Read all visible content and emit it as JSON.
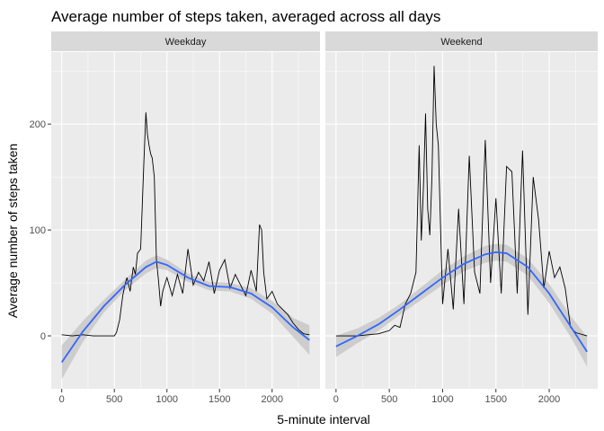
{
  "chart_data": {
    "type": "line",
    "title": "Average number of steps taken, averaged across all days",
    "xlabel": "5-minute interval",
    "ylabel": "Average number of steps taken",
    "xlim": [
      -100,
      2455
    ],
    "ylim": [
      -50,
      268
    ],
    "x_ticks": [
      0,
      500,
      1000,
      1500,
      2000
    ],
    "y_ticks": [
      0,
      100,
      200
    ],
    "grid": true,
    "colors": {
      "panel_bg": "#EBEBEB",
      "strip_bg": "#D9D9D9",
      "grid": "#FFFFFF",
      "line": "#000000",
      "smooth": "#3366FF",
      "ribbon": "#C8C8C8"
    },
    "panels": [
      {
        "name": "Weekday",
        "series": [
          {
            "kind": "observed",
            "x": [
              0,
              100,
              200,
              300,
              400,
              500,
              520,
              550,
              580,
              600,
              620,
              650,
              680,
              700,
              720,
              750,
              780,
              800,
              815,
              830,
              845,
              860,
              880,
              900,
              920,
              940,
              960,
              1000,
              1050,
              1100,
              1150,
              1200,
              1250,
              1300,
              1350,
              1400,
              1450,
              1500,
              1550,
              1600,
              1650,
              1700,
              1750,
              1800,
              1850,
              1880,
              1900,
              1920,
              1950,
              2000,
              2050,
              2100,
              2150,
              2200,
              2250,
              2300,
              2355
            ],
            "y": [
              1,
              0,
              1,
              0,
              0,
              0,
              3,
              15,
              38,
              48,
              55,
              42,
              65,
              58,
              78,
              82,
              162,
              211,
              190,
              180,
              172,
              168,
              150,
              72,
              52,
              28,
              42,
              55,
              38,
              58,
              40,
              82,
              48,
              60,
              52,
              70,
              40,
              62,
              72,
              45,
              58,
              48,
              38,
              62,
              42,
              105,
              100,
              60,
              35,
              42,
              30,
              25,
              20,
              12,
              6,
              2,
              1
            ]
          },
          {
            "kind": "smooth",
            "x": [
              0,
              200,
              400,
              600,
              800,
              900,
              1000,
              1200,
              1400,
              1600,
              1800,
              2000,
              2200,
              2355
            ],
            "y": [
              -25,
              4,
              28,
              48,
              65,
              70,
              67,
              55,
              47,
              46,
              40,
              27,
              8,
              -4
            ],
            "band": [
              16,
              10,
              6,
              5,
              6,
              6,
              5,
              4,
              4,
              4,
              5,
              6,
              9,
              14
            ]
          }
        ]
      },
      {
        "name": "Weekend",
        "series": [
          {
            "kind": "observed",
            "x": [
              0,
              100,
              200,
              300,
              400,
              500,
              550,
              600,
              650,
              700,
              750,
              780,
              800,
              820,
              840,
              860,
              880,
              900,
              920,
              940,
              960,
              1000,
              1050,
              1100,
              1150,
              1200,
              1250,
              1300,
              1350,
              1400,
              1450,
              1500,
              1550,
              1600,
              1650,
              1700,
              1750,
              1800,
              1850,
              1900,
              1950,
              2000,
              2050,
              2100,
              2150,
              2200,
              2250,
              2355
            ],
            "y": [
              0,
              0,
              0,
              1,
              2,
              5,
              10,
              8,
              30,
              40,
              60,
              180,
              90,
              140,
              210,
              120,
              95,
              150,
              255,
              200,
              180,
              30,
              82,
              25,
              120,
              30,
              170,
              60,
              40,
              185,
              50,
              130,
              40,
              160,
              155,
              40,
              175,
              20,
              150,
              110,
              45,
              80,
              55,
              65,
              45,
              8,
              3,
              0
            ],
            "band_none": true
          },
          {
            "kind": "smooth",
            "x": [
              0,
              200,
              400,
              600,
              800,
              1000,
              1200,
              1400,
              1500,
              1600,
              1800,
              2000,
              2200,
              2355
            ],
            "y": [
              -10,
              0,
              11,
              25,
              40,
              55,
              68,
              77,
              79,
              78,
              65,
              40,
              9,
              -15
            ],
            "band": [
              10,
              7,
              6,
              5,
              6,
              7,
              7,
              8,
              8,
              8,
              8,
              9,
              10,
              14
            ]
          }
        ]
      }
    ]
  }
}
